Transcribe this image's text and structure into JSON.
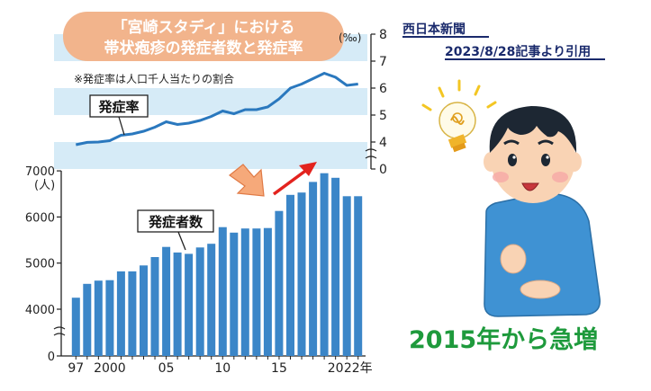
{
  "source": {
    "publisher": "西日本新聞",
    "note": "2023/8/28記事より引用"
  },
  "headline": "2015年から急増",
  "chart_title": {
    "line1": "「宮崎スタディ」における",
    "line2": "帯状疱疹の発症者数と発症率"
  },
  "rate_note": "※発症率は人口千人当たりの割合",
  "rate_label": "発症率",
  "count_label": "発症者数",
  "chart_data": [
    {
      "type": "line",
      "name": "発症率",
      "x": [
        "1997",
        "1998",
        "1999",
        "2000",
        "2001",
        "2002",
        "2003",
        "2004",
        "2005",
        "2006",
        "2007",
        "2008",
        "2009",
        "2010",
        "2011",
        "2012",
        "2013",
        "2014",
        "2015",
        "2016",
        "2017",
        "2018",
        "2019",
        "2020",
        "2021",
        "2022"
      ],
      "values": [
        3.6,
        3.95,
        4.0,
        4.05,
        4.25,
        4.3,
        4.4,
        4.55,
        4.75,
        4.65,
        4.7,
        4.8,
        4.95,
        5.15,
        5.05,
        5.2,
        5.2,
        5.3,
        5.6,
        6.0,
        6.15,
        6.35,
        6.55,
        6.4,
        6.1,
        6.15
      ],
      "ylabel": "(‰)",
      "ylim": [
        0,
        8
      ],
      "yticks": [
        0,
        4,
        5,
        6,
        7,
        8
      ],
      "axis_break": true
    },
    {
      "type": "bar",
      "name": "発症者数",
      "categories": [
        "1997",
        "1998",
        "1999",
        "2000",
        "2001",
        "2002",
        "2003",
        "2004",
        "2005",
        "2006",
        "2007",
        "2008",
        "2009",
        "2010",
        "2011",
        "2012",
        "2013",
        "2014",
        "2015",
        "2016",
        "2017",
        "2018",
        "2019",
        "2020",
        "2021",
        "2022"
      ],
      "values": [
        4250,
        4550,
        4620,
        4630,
        4820,
        4820,
        4950,
        5130,
        5350,
        5230,
        5200,
        5340,
        5420,
        5780,
        5660,
        5750,
        5750,
        5760,
        6130,
        6480,
        6530,
        6760,
        6950,
        6850,
        6450,
        6450
      ],
      "ylabel": "(人)",
      "ylim": [
        0,
        7000
      ],
      "yticks": [
        0,
        4000,
        5000,
        6000,
        7000
      ],
      "axis_break": true,
      "tick_labels": [
        "97",
        "2000",
        "05",
        "10",
        "15",
        "20",
        "22年"
      ],
      "tick_positions": [
        "1997",
        "2000",
        "2005",
        "2010",
        "2015",
        "2020",
        "2022"
      ]
    }
  ],
  "colors": {
    "bar": "#3b86c8",
    "line": "#2a78be",
    "band": "#d6ebf7",
    "title_bubble": "#f2b48c",
    "arrow_red": "#e3231e",
    "arrow_orange": "#f6a97a",
    "headline": "#1e9a3c",
    "source_text": "#1a2a6c"
  },
  "illustration": "man-with-lightbulb-idea-icon"
}
